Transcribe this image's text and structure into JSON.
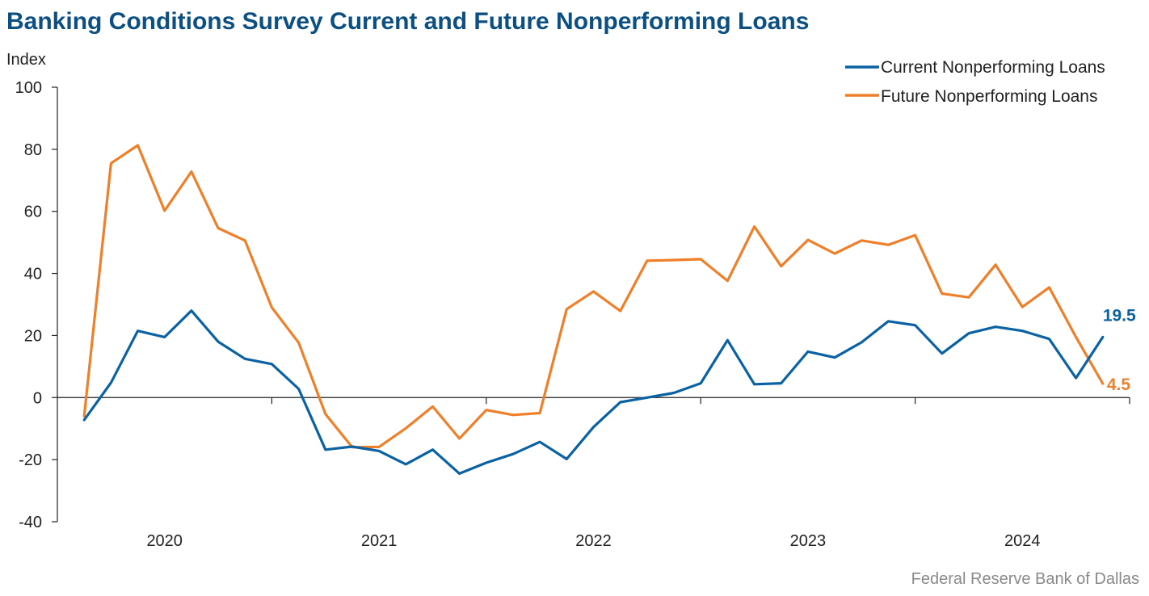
{
  "title": "Banking Conditions Survey Current and Future Nonperforming Loans",
  "source": "Federal Reserve Bank of Dallas",
  "colors": {
    "current": "#0b62a3",
    "future": "#f07f2a",
    "title": "#0c4f83",
    "axis": "#222222"
  },
  "chart_data": {
    "type": "line",
    "ylabel": "Index",
    "ylim": [
      -40,
      100
    ],
    "yticks": [
      -40,
      -20,
      0,
      20,
      40,
      60,
      80,
      100
    ],
    "xlim": [
      2019.5,
      2024.5
    ],
    "x_tick_labels": [
      "2020",
      "2021",
      "2022",
      "2023",
      "2024"
    ],
    "x_tick_positions": [
      2020.0,
      2021.0,
      2022.0,
      2023.0,
      2024.0
    ],
    "grid": false,
    "legend_position": "top-right",
    "x": [
      2019.625,
      2019.75,
      2019.875,
      2020.0,
      2020.125,
      2020.25,
      2020.375,
      2020.5,
      2020.625,
      2020.75,
      2020.875,
      2021.0,
      2021.125,
      2021.25,
      2021.375,
      2021.5,
      2021.625,
      2021.75,
      2021.875,
      2022.0,
      2022.125,
      2022.25,
      2022.375,
      2022.5,
      2022.625,
      2022.75,
      2022.875,
      2023.0,
      2023.125,
      2023.25,
      2023.375,
      2023.5,
      2023.625,
      2023.75,
      2023.875,
      2024.0,
      2024.125,
      2024.25,
      2024.375
    ],
    "series": [
      {
        "name": "Current Nonperforming Loans",
        "color": "#0b62a3",
        "values": [
          -7.2,
          4.8,
          21.5,
          19.5,
          28.0,
          18.0,
          12.5,
          10.8,
          2.8,
          -16.8,
          -15.8,
          -17.2,
          -21.5,
          -16.8,
          -24.5,
          -21.0,
          -18.2,
          -14.3,
          -19.8,
          -9.5,
          -1.5,
          0.0,
          1.5,
          4.6,
          18.5,
          4.3,
          4.6,
          14.8,
          12.9,
          17.8,
          24.6,
          23.3,
          14.2,
          20.7,
          22.8,
          21.5,
          18.9,
          6.3,
          19.5
        ]
      },
      {
        "name": "Future Nonperforming Loans",
        "color": "#f07f2a",
        "values": [
          -6.0,
          75.5,
          81.3,
          60.2,
          72.8,
          54.6,
          50.6,
          29.0,
          17.7,
          -5.3,
          -16.0,
          -15.9,
          -9.9,
          -2.9,
          -13.2,
          -4.0,
          -5.6,
          -5.0,
          28.5,
          34.2,
          27.9,
          44.1,
          44.3,
          44.6,
          37.6,
          55.1,
          42.3,
          50.8,
          46.4,
          50.6,
          49.2,
          52.3,
          33.5,
          32.3,
          42.8,
          29.2,
          35.5,
          19.5,
          4.5
        ]
      }
    ],
    "end_labels": [
      {
        "series": "Current Nonperforming Loans",
        "text": "19.5"
      },
      {
        "series": "Future Nonperforming Loans",
        "text": "4.5"
      }
    ]
  }
}
